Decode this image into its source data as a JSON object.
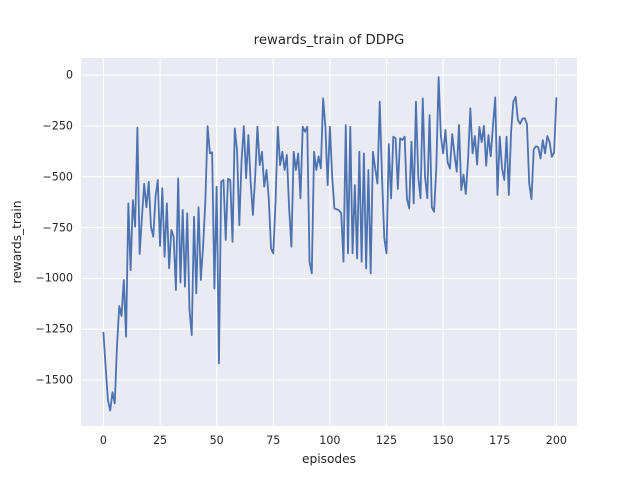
{
  "figure": {
    "background": "#FFFFFF"
  },
  "chart_data": {
    "type": "line",
    "title": "rewards_train of DDPG",
    "xlabel": "episodes",
    "ylabel": "rewards_train",
    "xlim": [
      -9.9,
      209.1
    ],
    "ylim": [
      -1726,
      84
    ],
    "grid": true,
    "legend": false,
    "plot_bg": "#EAEAF2",
    "grid_color": "#FFFFFF",
    "line_color": "#4C72B0",
    "text_color": "#262626",
    "xticks": [
      {
        "value": 0,
        "label": "0"
      },
      {
        "value": 25,
        "label": "25"
      },
      {
        "value": 50,
        "label": "50"
      },
      {
        "value": 75,
        "label": "75"
      },
      {
        "value": 100,
        "label": "100"
      },
      {
        "value": 125,
        "label": "125"
      },
      {
        "value": 150,
        "label": "150"
      },
      {
        "value": 175,
        "label": "175"
      },
      {
        "value": 200,
        "label": "200"
      }
    ],
    "yticks": [
      {
        "value": 0,
        "label": "0"
      },
      {
        "value": -250,
        "label": "−250"
      },
      {
        "value": -500,
        "label": "−500"
      },
      {
        "value": -750,
        "label": "−750"
      },
      {
        "value": -1000,
        "label": "−1000"
      },
      {
        "value": -1250,
        "label": "−1250"
      },
      {
        "value": -1500,
        "label": "−1500"
      }
    ],
    "x_start": 0,
    "x_step": 1,
    "series": [
      {
        "name": "rewards_train",
        "values": [
          -1267,
          -1440,
          -1600,
          -1650,
          -1560,
          -1615,
          -1330,
          -1136,
          -1185,
          -1008,
          -1287,
          -631,
          -959,
          -615,
          -746,
          -259,
          -880,
          -700,
          -535,
          -650,
          -525,
          -746,
          -795,
          -600,
          -516,
          -840,
          -557,
          -894,
          -631,
          -950,
          -762,
          -795,
          -1057,
          -508,
          -1020,
          -664,
          -1041,
          -680,
          -1156,
          -1279,
          -697,
          -1074,
          -650,
          -1008,
          -844,
          -620,
          -251,
          -385,
          -380,
          -1050,
          -549,
          -1418,
          -525,
          -516,
          -811,
          -510,
          -516,
          -820,
          -262,
          -371,
          -738,
          -418,
          -251,
          -508,
          -295,
          -525,
          -688,
          -500,
          -254,
          -443,
          -377,
          -549,
          -467,
          -606,
          -852,
          -877,
          -623,
          -254,
          -443,
          -377,
          -467,
          -393,
          -656,
          -844,
          -377,
          -467,
          -385,
          -606,
          -254,
          -279,
          -254,
          -918,
          -975,
          -377,
          -467,
          -400,
          -459,
          -115,
          -254,
          -541,
          -254,
          -500,
          -656,
          -660,
          -665,
          -680,
          -918,
          -246,
          -877,
          -254,
          -877,
          -541,
          -902,
          -377,
          -918,
          -385,
          -951,
          -467,
          -975,
          -377,
          -459,
          -533,
          -131,
          -500,
          -800,
          -877,
          -340,
          -606,
          -303,
          -311,
          -560,
          -311,
          -319,
          -303,
          -606,
          -656,
          -328,
          -631,
          -131,
          -500,
          -606,
          -115,
          -500,
          -606,
          -197,
          -650,
          -672,
          -450,
          -10,
          -300,
          -385,
          -270,
          -430,
          -460,
          -290,
          -390,
          -475,
          -245,
          -565,
          -490,
          -585,
          -415,
          -164,
          -385,
          -300,
          -440,
          -255,
          -330,
          -250,
          -445,
          -295,
          -400,
          -250,
          -110,
          -590,
          -303,
          -459,
          -516,
          -303,
          -590,
          -279,
          -131,
          -107,
          -221,
          -240,
          -215,
          -212,
          -240,
          -533,
          -610,
          -365,
          -350,
          -355,
          -410,
          -320,
          -385,
          -300,
          -330,
          -402,
          -380,
          -113
        ]
      }
    ]
  }
}
